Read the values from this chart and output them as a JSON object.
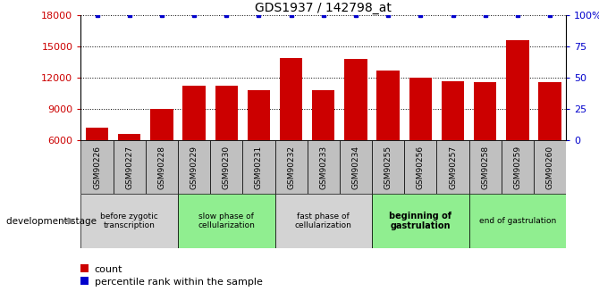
{
  "title": "GDS1937 / 142798_at",
  "categories": [
    "GSM90226",
    "GSM90227",
    "GSM90228",
    "GSM90229",
    "GSM90230",
    "GSM90231",
    "GSM90232",
    "GSM90233",
    "GSM90234",
    "GSM90255",
    "GSM90256",
    "GSM90257",
    "GSM90258",
    "GSM90259",
    "GSM90260"
  ],
  "bar_values": [
    7200,
    6600,
    9000,
    11200,
    11200,
    10800,
    13900,
    10800,
    13800,
    12700,
    12000,
    11700,
    11600,
    15600,
    11600
  ],
  "percentile_values": [
    100,
    100,
    100,
    100,
    100,
    100,
    100,
    100,
    100,
    100,
    100,
    100,
    100,
    100,
    100
  ],
  "bar_color": "#cc0000",
  "percentile_color": "#0000cc",
  "ylim_left": [
    6000,
    18000
  ],
  "ylim_right": [
    0,
    100
  ],
  "yticks_left": [
    6000,
    9000,
    12000,
    15000,
    18000
  ],
  "yticks_right": [
    0,
    25,
    50,
    75,
    100
  ],
  "yticklabels_right": [
    "0",
    "25",
    "50",
    "75",
    "100%"
  ],
  "grid_color": "#000000",
  "stage_groups": [
    {
      "label": "before zygotic\ntranscription",
      "start": 0,
      "end": 3,
      "color": "#d3d3d3",
      "bold": false
    },
    {
      "label": "slow phase of\ncellularization",
      "start": 3,
      "end": 6,
      "color": "#90EE90",
      "bold": false
    },
    {
      "label": "fast phase of\ncellularization",
      "start": 6,
      "end": 9,
      "color": "#d3d3d3",
      "bold": false
    },
    {
      "label": "beginning of\ngastrulation",
      "start": 9,
      "end": 12,
      "color": "#90EE90",
      "bold": true
    },
    {
      "label": "end of gastrulation",
      "start": 12,
      "end": 15,
      "color": "#90EE90",
      "bold": false
    }
  ],
  "xtick_box_color": "#c0c0c0",
  "dev_stage_label": "development stage",
  "legend_count_label": "count",
  "legend_pct_label": "percentile rank within the sample",
  "ticklabel_color_left": "#cc0000",
  "ticklabel_color_right": "#0000cc"
}
